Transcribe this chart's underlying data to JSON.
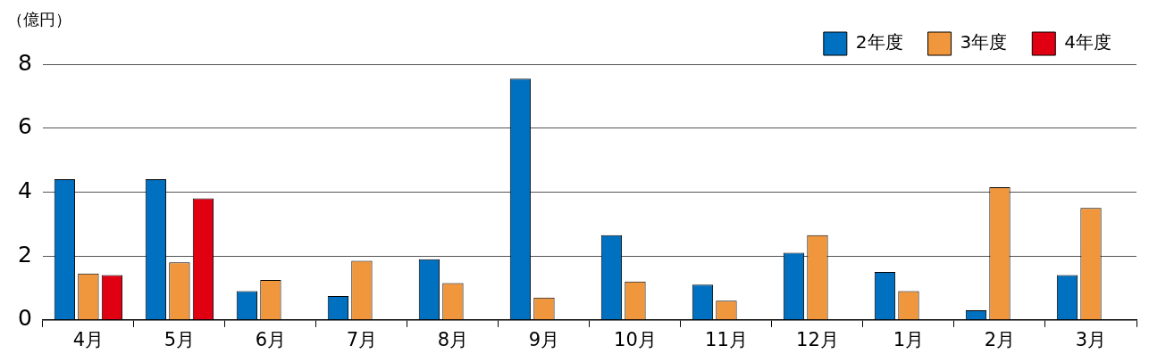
{
  "chart_data": {
    "type": "bar",
    "ylabel": "（億円）",
    "categories": [
      "4月",
      "5月",
      "6月",
      "7月",
      "8月",
      "9月",
      "10月",
      "11月",
      "12月",
      "1月",
      "2月",
      "3月"
    ],
    "series": [
      {
        "name": "2年度",
        "color": "#0070c0",
        "values": [
          4.4,
          4.4,
          0.9,
          0.75,
          1.9,
          7.55,
          2.65,
          1.1,
          2.1,
          1.5,
          0.3,
          1.4
        ]
      },
      {
        "name": "3年度",
        "color": "#f0963c",
        "values": [
          1.45,
          1.8,
          1.25,
          1.85,
          1.15,
          0.7,
          1.2,
          0.6,
          2.65,
          0.9,
          4.15,
          3.5
        ]
      },
      {
        "name": "4年度",
        "color": "#e00012",
        "values": [
          1.4,
          3.8,
          null,
          null,
          null,
          null,
          null,
          null,
          null,
          null,
          null,
          null
        ]
      }
    ],
    "ylim": [
      0,
      8
    ],
    "yticks": [
      0,
      2,
      4,
      6,
      8
    ],
    "grid": "y",
    "legend": "top right"
  }
}
